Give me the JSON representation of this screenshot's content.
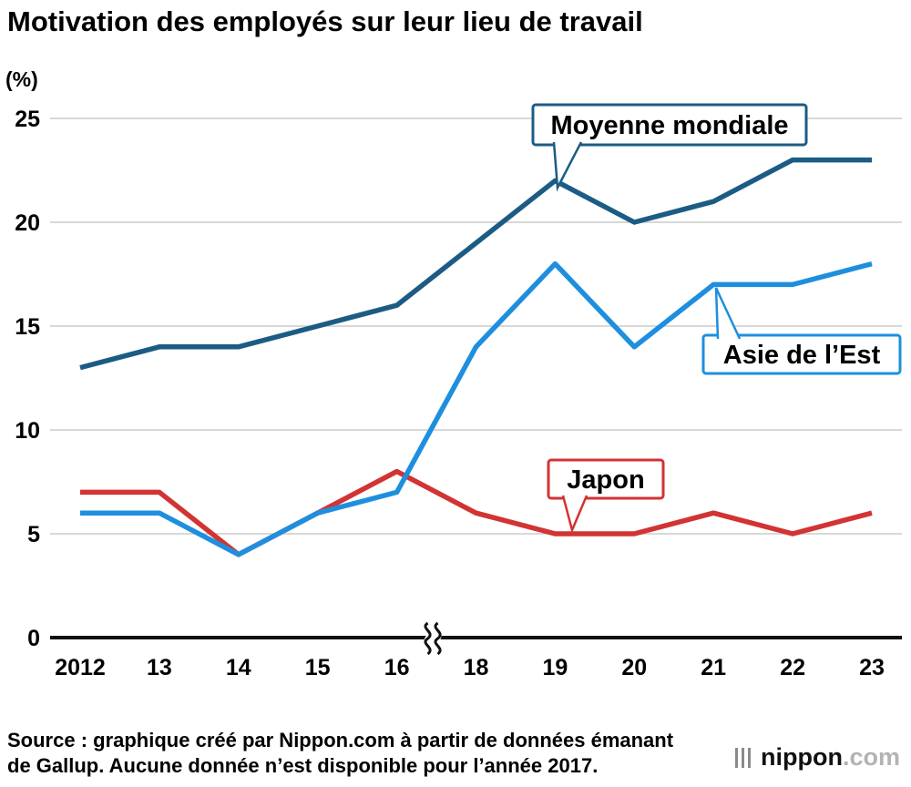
{
  "chart_data": {
    "type": "line",
    "title": "Motivation des employés sur leur lieu de travail",
    "ylabel": "(%)",
    "xlabel": "",
    "ylim": [
      0,
      25
    ],
    "yticks": [
      0,
      5,
      10,
      15,
      20,
      25
    ],
    "grid": true,
    "categories": [
      "2012",
      "13",
      "14",
      "15",
      "16",
      "18",
      "19",
      "20",
      "21",
      "22",
      "23"
    ],
    "axis_break": {
      "between": [
        "16",
        "18"
      ],
      "missing_year": "2017"
    },
    "legend_position": "callout annotations on plot",
    "series": [
      {
        "id": "moyenne",
        "name": "Moyenne mondiale",
        "color": "#1b5c84",
        "values": [
          13,
          14,
          14,
          15,
          16,
          19,
          22,
          20,
          21,
          23,
          23
        ]
      },
      {
        "id": "japon",
        "name": "Japon",
        "color": "#d23333",
        "values": [
          7,
          7,
          4,
          6,
          8,
          6,
          5,
          5,
          6,
          5,
          6
        ]
      },
      {
        "id": "asie",
        "name": "Asie de l’Est",
        "color": "#1e8fde",
        "values": [
          6,
          6,
          4,
          6,
          7,
          14,
          18,
          14,
          17,
          17,
          18
        ]
      }
    ],
    "colors": {
      "grid": "#cccccc",
      "axis": "#111111",
      "annotation_bg": "#ffffff",
      "text": "#000000"
    }
  },
  "source": {
    "lines": [
      "Source : graphique créé par Nippon.com à partir de données émanant",
      "de Gallup. Aucune donnée n’est disponible pour l’année 2017."
    ]
  },
  "logo": {
    "name": "nippon",
    "tld": ".com"
  }
}
